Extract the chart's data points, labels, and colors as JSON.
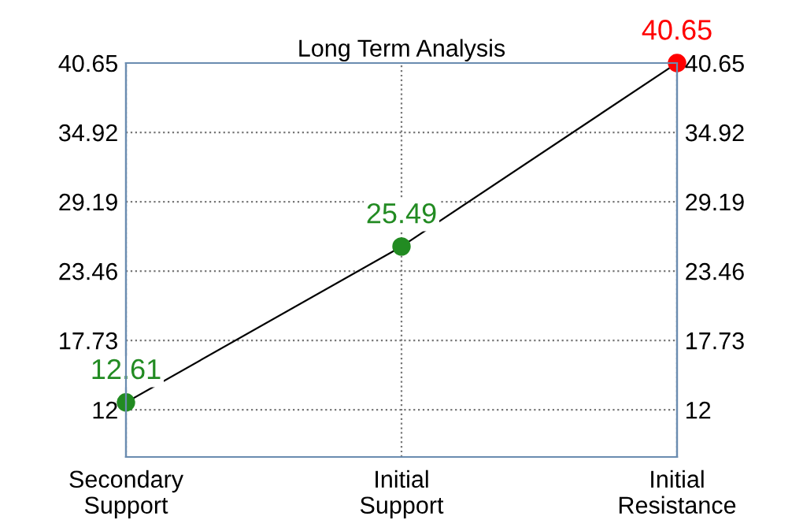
{
  "chart_data": {
    "type": "line",
    "title": "Long Term Analysis",
    "categories": [
      "Secondary\nSupport",
      "Initial\nSupport",
      "Initial\nResistance"
    ],
    "series": [
      {
        "color": "#000000",
        "colors": [
          "#228b22",
          "#228b22",
          "#ff0000"
        ],
        "values": [
          12.61,
          25.49,
          40.65
        ]
      }
    ],
    "ylim": [
      8.1,
      40.65
    ],
    "yticks": [
      12,
      17.73,
      23.46,
      29.19,
      34.92,
      40.65
    ],
    "y2lim": [
      8.1,
      40.65
    ],
    "y2ticks": [
      12,
      17.73,
      23.46,
      29.19,
      34.92,
      40.65
    ],
    "grid": true,
    "marker": "circle",
    "line_style": "solid",
    "data_labels": true
  }
}
